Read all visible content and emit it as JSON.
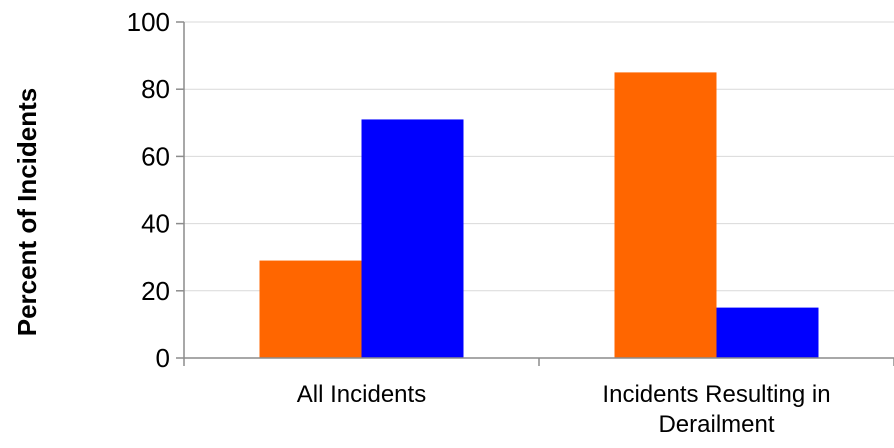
{
  "chart_data": {
    "type": "bar",
    "title": "",
    "xlabel": "",
    "ylabel": "Percent of Incidents",
    "ylim": [
      0,
      100
    ],
    "yticks": [
      0,
      20,
      40,
      60,
      80,
      100
    ],
    "grid": true,
    "legend": "none",
    "categories": [
      [
        "All Incidents"
      ],
      [
        "Incidents Resulting in",
        "Derailment"
      ]
    ],
    "series": [
      {
        "color": "#ff6600",
        "values": [
          29,
          85
        ]
      },
      {
        "color": "#0000ff",
        "values": [
          71,
          15
        ]
      }
    ]
  }
}
